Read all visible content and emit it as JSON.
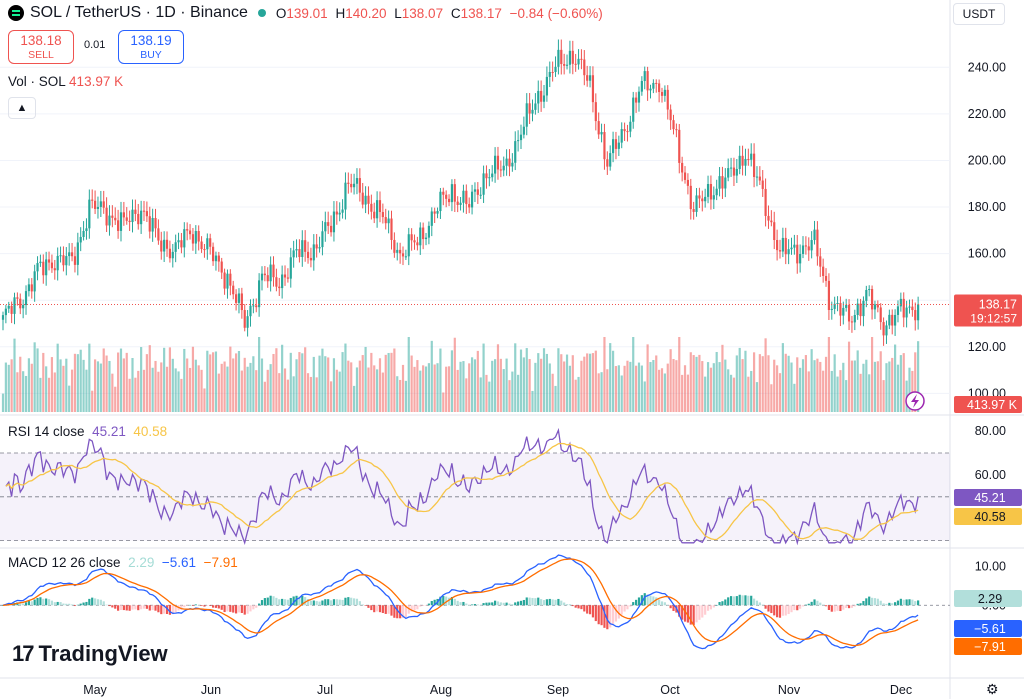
{
  "header": {
    "symbol": "SOL / TetherUS · 1D · Binance",
    "o_label": "O",
    "o": "139.01",
    "h_label": "H",
    "h": "140.20",
    "l_label": "L",
    "l": "138.07",
    "c_label": "C",
    "c": "138.17",
    "change": "−0.84 (−0.60%)"
  },
  "trade": {
    "sell_price": "138.18",
    "sell_label": "SELL",
    "spread": "0.01",
    "buy_price": "138.19",
    "buy_label": "BUY"
  },
  "volume_pane": {
    "label": "Vol · SOL",
    "value": "413.97 K",
    "axis_badge": "413.97 K"
  },
  "currency_button": "USDT",
  "collapse_icon": "chevron-up-icon",
  "price_badge": {
    "price": "138.17",
    "countdown": "19:12:57"
  },
  "rsi_pane": {
    "label": "RSI 14 close",
    "rsi": "45.21",
    "ma": "40.58"
  },
  "macd_pane": {
    "label": "MACD 12 26 close",
    "hist": "2.29",
    "macd": "−5.61",
    "signal": "−7.91"
  },
  "branding": "TradingView",
  "colors": {
    "up": "#26a69a",
    "down": "#ef5350",
    "rsi": "#7e57c2",
    "rsi_ma": "#f7c547",
    "macd": "#2962ff",
    "signal": "#ff6d00"
  },
  "chart_data": {
    "type": "candlestick",
    "title": "SOL / TetherUS · 1D · Binance",
    "x_tick_labels": [
      "May",
      "Jun",
      "Jul",
      "Aug",
      "Sep",
      "Oct",
      "Nov",
      "Dec"
    ],
    "price_axis": {
      "ticks": [
        "240.00",
        "220.00",
        "200.00",
        "180.00",
        "160.00",
        "140.00",
        "120.00",
        "100.00"
      ],
      "range": [
        92,
        256
      ]
    },
    "rsi_axis": {
      "ticks": [
        "80.00",
        "60.00"
      ],
      "bands": [
        30,
        50,
        70
      ],
      "range": [
        28,
        86
      ]
    },
    "macd_axis": {
      "ticks": [
        "10.00",
        "0.00"
      ],
      "range": [
        -18,
        14
      ]
    },
    "close_waypoints": [
      [
        0,
        132
      ],
      [
        6,
        140
      ],
      [
        12,
        152
      ],
      [
        18,
        158
      ],
      [
        24,
        156
      ],
      [
        30,
        180
      ],
      [
        36,
        178
      ],
      [
        42,
        172
      ],
      [
        48,
        180
      ],
      [
        54,
        165
      ],
      [
        60,
        162
      ],
      [
        66,
        170
      ],
      [
        72,
        160
      ],
      [
        78,
        150
      ],
      [
        84,
        130
      ],
      [
        90,
        150
      ],
      [
        96,
        148
      ],
      [
        102,
        160
      ],
      [
        108,
        162
      ],
      [
        114,
        172
      ],
      [
        120,
        190
      ],
      [
        126,
        184
      ],
      [
        132,
        175
      ],
      [
        138,
        160
      ],
      [
        144,
        165
      ],
      [
        150,
        178
      ],
      [
        156,
        187
      ],
      [
        162,
        180
      ],
      [
        168,
        195
      ],
      [
        174,
        196
      ],
      [
        180,
        212
      ],
      [
        186,
        228
      ],
      [
        192,
        240
      ],
      [
        198,
        246
      ],
      [
        204,
        232
      ],
      [
        210,
        198
      ],
      [
        216,
        214
      ],
      [
        222,
        232
      ],
      [
        228,
        234
      ],
      [
        234,
        208
      ],
      [
        240,
        178
      ],
      [
        246,
        188
      ],
      [
        252,
        192
      ],
      [
        258,
        204
      ],
      [
        264,
        185
      ],
      [
        270,
        160
      ],
      [
        276,
        162
      ],
      [
        282,
        164
      ],
      [
        288,
        138
      ],
      [
        294,
        132
      ],
      [
        300,
        142
      ],
      [
        306,
        130
      ],
      [
        312,
        135
      ],
      [
        318,
        138
      ]
    ]
  }
}
